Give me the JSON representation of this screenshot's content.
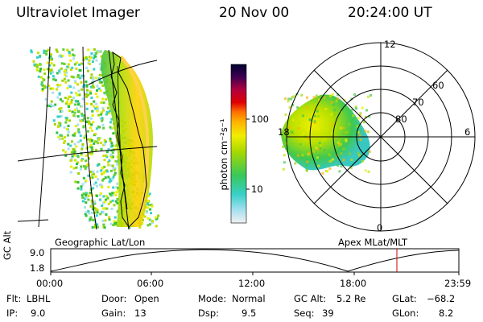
{
  "header": {
    "instrument": "Ultraviolet Imager",
    "date": "20 Nov 00",
    "time": "20:24:00 UT"
  },
  "geo_panel": {
    "caption": "Geographic Lat/Lon"
  },
  "colorbar": {
    "label": "photon cm⁻²s⁻¹",
    "ticks": [
      "100",
      "10"
    ]
  },
  "polar_panel": {
    "caption": "Apex MLat/MLT",
    "mlt_labels": {
      "top": "12",
      "left": "18",
      "right": "6",
      "bottom": "0"
    },
    "lat_labels": [
      "60",
      "70",
      "80"
    ]
  },
  "altitude_plot": {
    "ylabel": "GC Alt",
    "ymax_label": "9.0",
    "ymin_label": "1.8",
    "x_ticks": [
      "00:00",
      "06:00",
      "12:00",
      "18:00",
      "23:59"
    ],
    "current_time_marker_color": "#cc0000"
  },
  "params": [
    {
      "name": "Flt:",
      "value": "LBHL"
    },
    {
      "name": "IP:",
      "value": "9.0"
    },
    {
      "name": "Door:",
      "value": "Open"
    },
    {
      "name": "Gain:",
      "value": "13"
    },
    {
      "name": "Mode:",
      "value": "Normal"
    },
    {
      "name": "Dsp:",
      "value": "9.5"
    },
    {
      "name": "GC Alt:",
      "value": "5.2 Re"
    },
    {
      "name": "Seq:",
      "value": "39"
    },
    {
      "name": "GLat:",
      "value": "−68.2"
    },
    {
      "name": "GLon:",
      "value": "8.2"
    }
  ]
}
